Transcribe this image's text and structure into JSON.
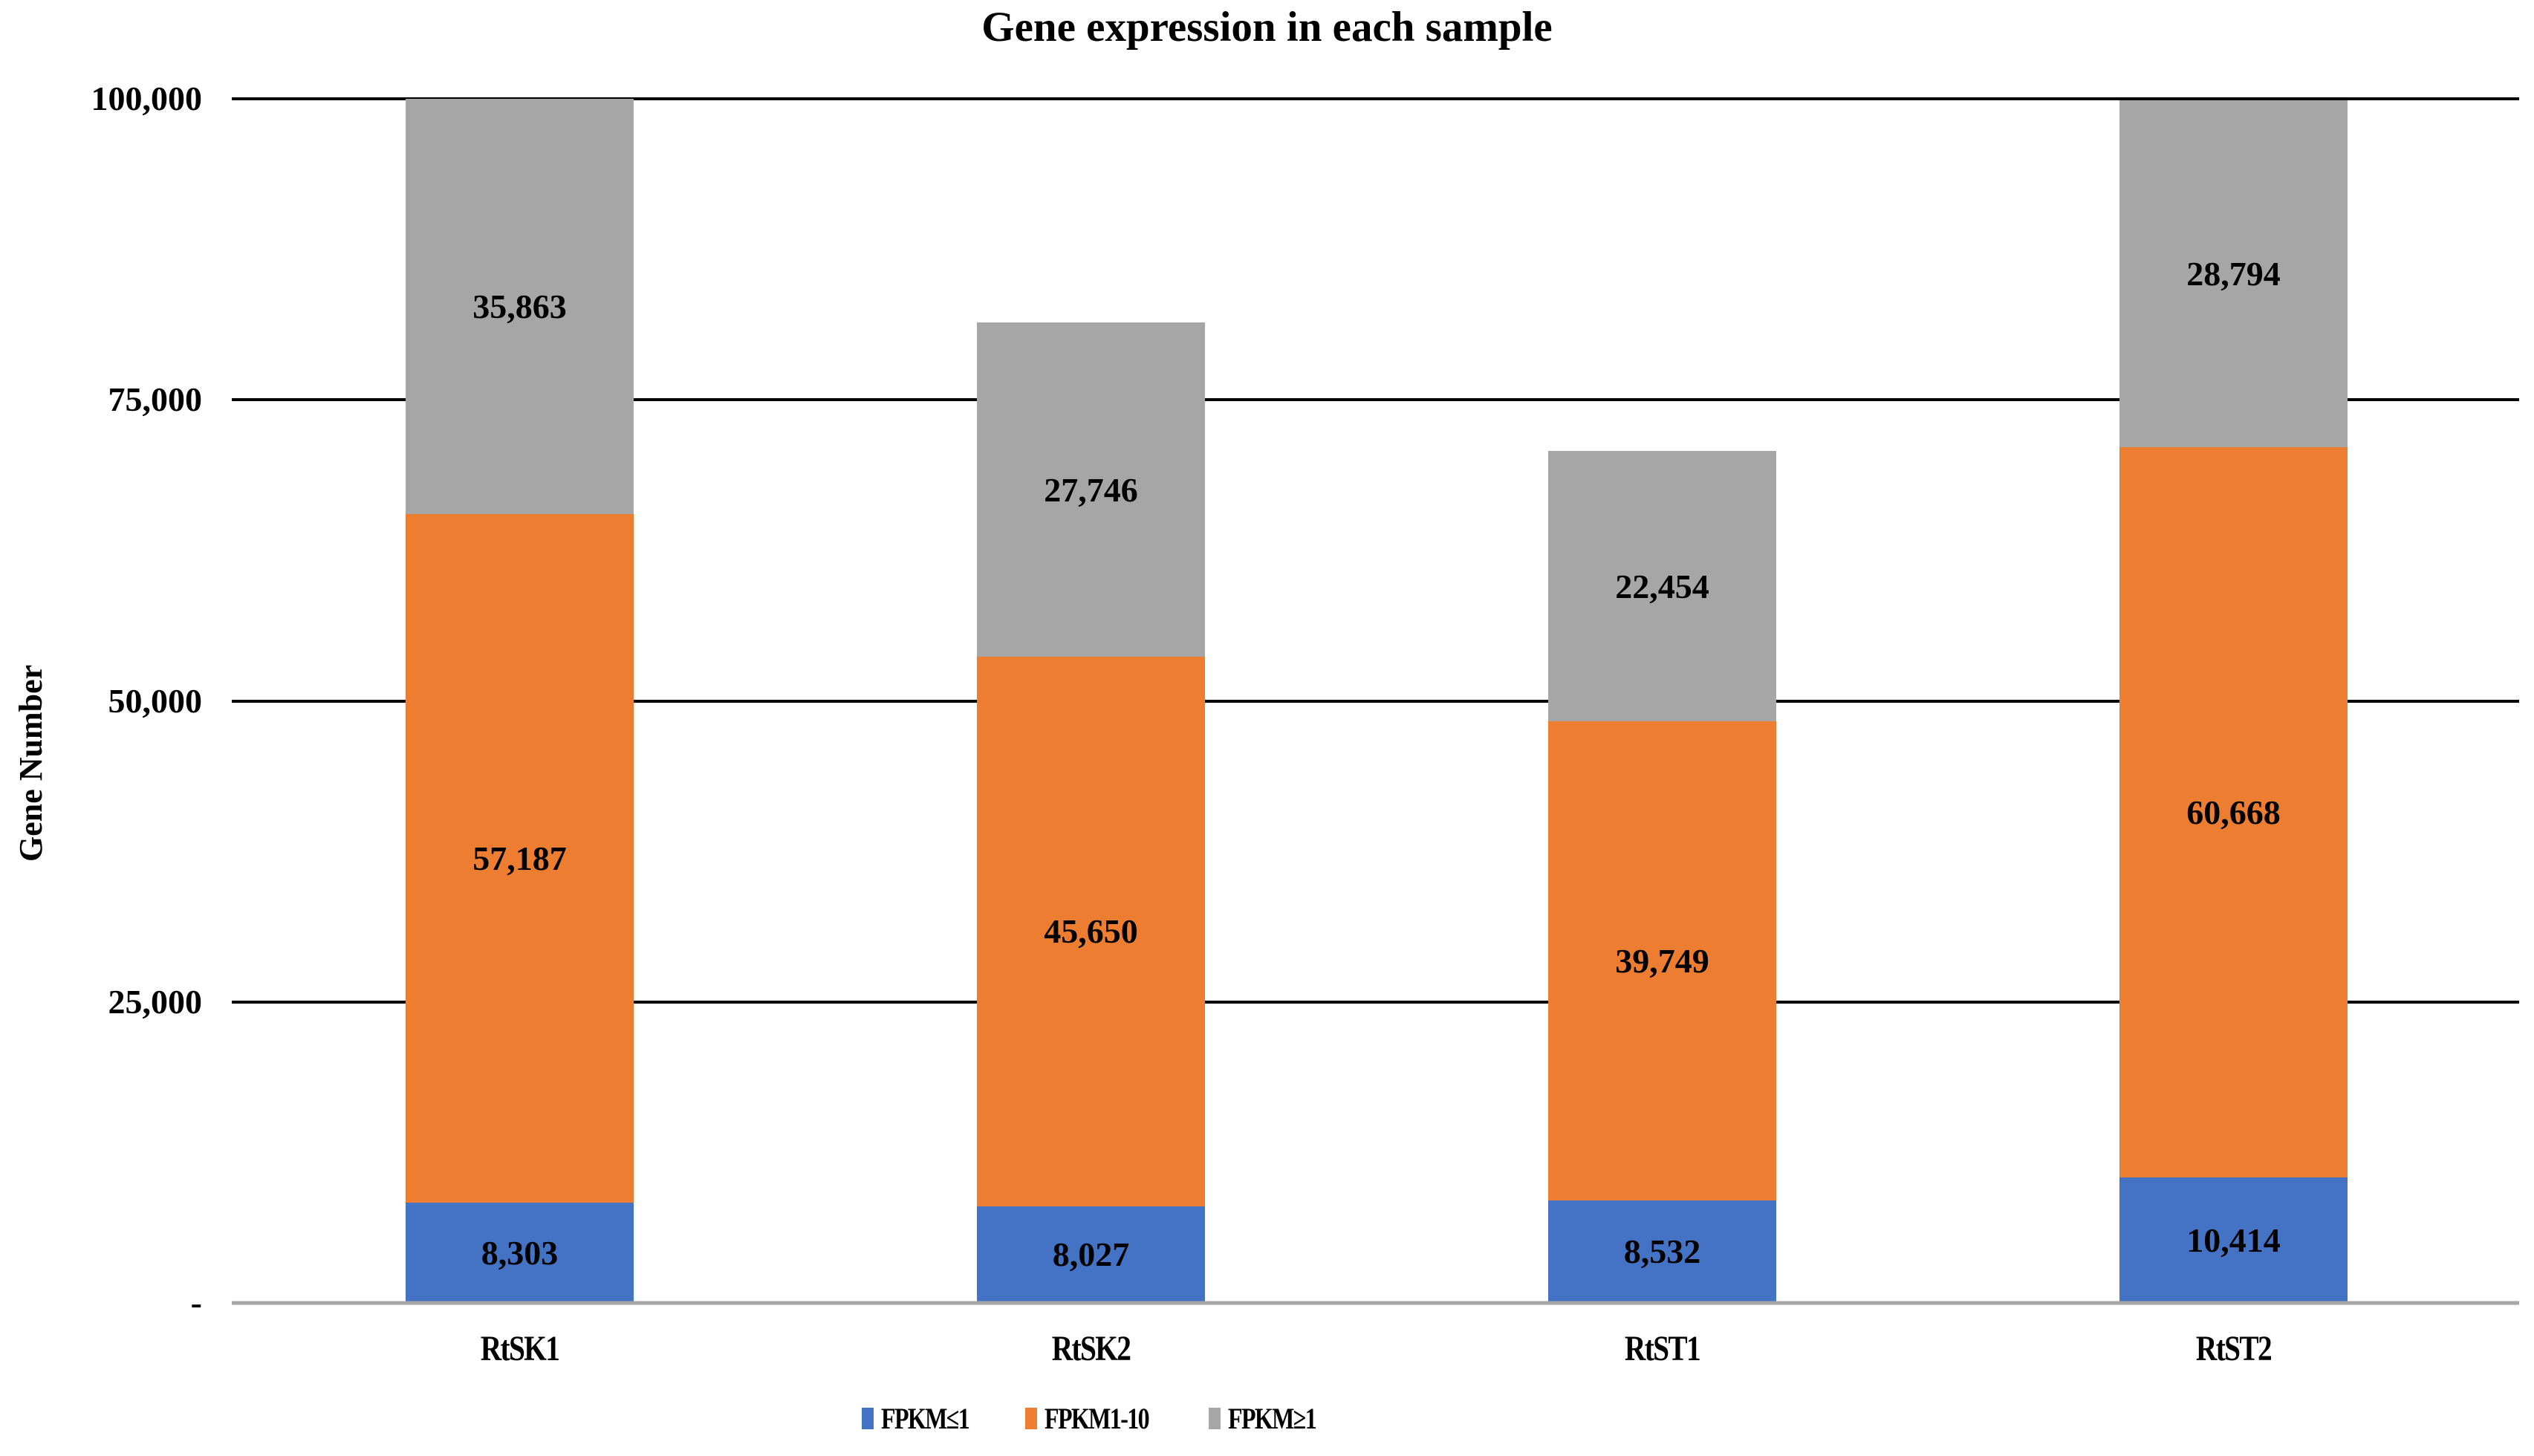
{
  "title": "Gene expression in each sample",
  "y_axis": {
    "label": "Gene Number",
    "max": 100000,
    "ticks": [
      {
        "value": 0,
        "label": "-"
      },
      {
        "value": 25000,
        "label": "25,000"
      },
      {
        "value": 50000,
        "label": "50,000"
      },
      {
        "value": 75000,
        "label": "75,000"
      },
      {
        "value": 100000,
        "label": "100,000"
      }
    ]
  },
  "legend": [
    {
      "label": "FPKM≤1",
      "color": "#4472C4"
    },
    {
      "label": "FPKM1-10",
      "color": "#ED7D31"
    },
    {
      "label": "FPKM≥1",
      "color": "#A6A6A6"
    }
  ],
  "chart_data": {
    "type": "bar",
    "stacked": true,
    "title": "Gene expression in each sample",
    "xlabel": "",
    "ylabel": "Gene Number",
    "ylim": [
      0,
      100000
    ],
    "grid": "horizontal",
    "legend_position": "bottom",
    "categories": [
      "RtSK1",
      "RtSK2",
      "RtST1",
      "RtST2"
    ],
    "series": [
      {
        "name": "FPKM≤1",
        "color": "#4472C4",
        "values": [
          8303,
          8027,
          8532,
          10414
        ],
        "labels": [
          "8,303",
          "8,027",
          "8,532",
          "10,414"
        ]
      },
      {
        "name": "FPKM1-10",
        "color": "#ED7D31",
        "values": [
          57187,
          45650,
          39749,
          60668
        ],
        "labels": [
          "57,187",
          "45,650",
          "39,749",
          "60,668"
        ]
      },
      {
        "name": "FPKM≥1",
        "color": "#A6A6A6",
        "values": [
          35863,
          27746,
          22454,
          28794
        ],
        "labels": [
          "35,863",
          "27,746",
          "22,454",
          "28,794"
        ]
      }
    ]
  }
}
